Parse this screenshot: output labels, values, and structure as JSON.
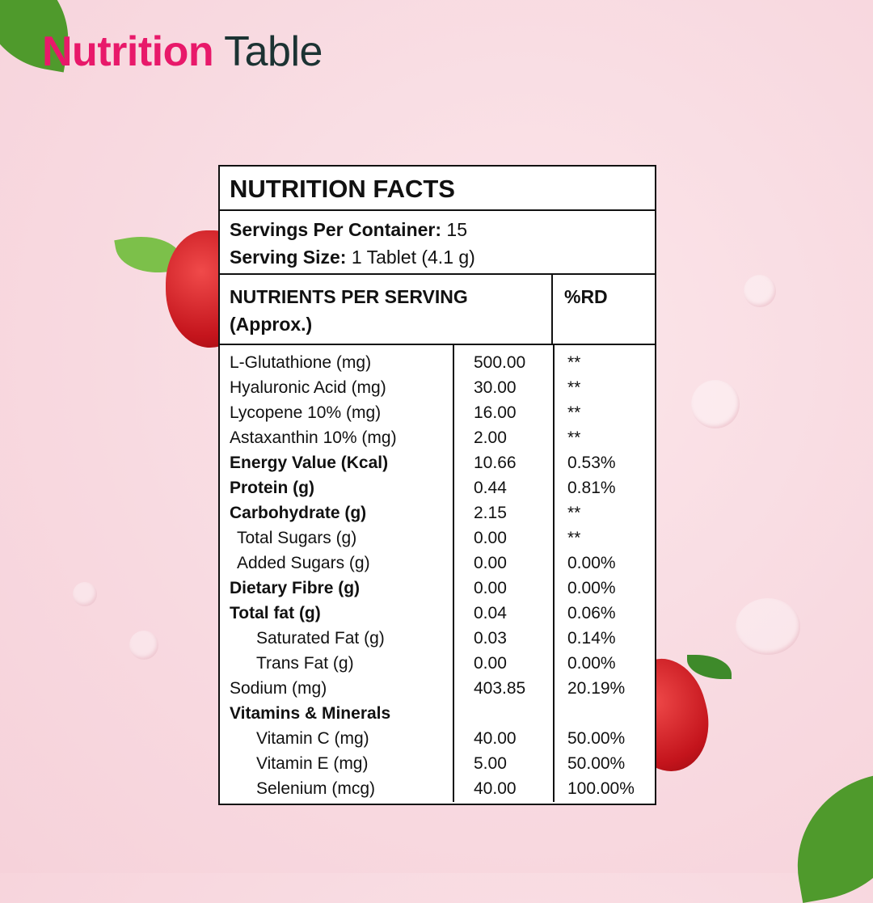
{
  "heading": {
    "part1": "Nutrition",
    "part2": "Table"
  },
  "facts_title": "NUTRITION FACTS",
  "servings": {
    "per_container_label": "Servings Per Container:",
    "per_container_value": "15",
    "size_label": "Serving Size:",
    "size_value": "1 Tablet (4.1 g)"
  },
  "header": {
    "nutrients": "NUTRIENTS PER SERVING",
    "approx": "(Approx.)",
    "rd": "%RD"
  },
  "rows": [
    {
      "name": "L-Glutathione (mg)",
      "value": "500.00",
      "rd": "**",
      "bold": false,
      "indent": 0
    },
    {
      "name": "Hyaluronic Acid (mg)",
      "value": "30.00",
      "rd": "**",
      "bold": false,
      "indent": 0
    },
    {
      "name": "Lycopene 10% (mg)",
      "value": "16.00",
      "rd": "**",
      "bold": false,
      "indent": 0
    },
    {
      "name": "Astaxanthin 10% (mg)",
      "value": "2.00",
      "rd": "**",
      "bold": false,
      "indent": 0
    },
    {
      "name": "Energy Value (Kcal)",
      "value": "10.66",
      "rd": "0.53%",
      "bold": true,
      "indent": 0
    },
    {
      "name": "Protein (g)",
      "value": "0.44",
      "rd": "0.81%",
      "bold": true,
      "indent": 0
    },
    {
      "name": "Carbohydrate (g)",
      "value": "2.15",
      "rd": "**",
      "bold": true,
      "indent": 0
    },
    {
      "name": "Total Sugars (g)",
      "value": "0.00",
      "rd": "**",
      "bold": false,
      "indent": 1
    },
    {
      "name": "Added Sugars (g)",
      "value": "0.00",
      "rd": "0.00%",
      "bold": false,
      "indent": 1
    },
    {
      "name": "Dietary Fibre (g)",
      "value": "0.00",
      "rd": "0.00%",
      "bold": true,
      "indent": 0
    },
    {
      "name": "Total fat (g)",
      "value": "0.04",
      "rd": "0.06%",
      "bold": true,
      "indent": 0
    },
    {
      "name": "Saturated Fat (g)",
      "value": "0.03",
      "rd": "0.14%",
      "bold": false,
      "indent": 2
    },
    {
      "name": "Trans Fat (g)",
      "value": "0.00",
      "rd": "0.00%",
      "bold": false,
      "indent": 2
    },
    {
      "name": "Sodium (mg)",
      "value": "403.85",
      "rd": "20.19%",
      "bold": false,
      "indent": 0
    },
    {
      "name": "Vitamins & Minerals",
      "value": "",
      "rd": "",
      "bold": true,
      "indent": 0
    },
    {
      "name": "Vitamin C (mg)",
      "value": "40.00",
      "rd": "50.00%",
      "bold": false,
      "indent": 2
    },
    {
      "name": "Vitamin E (mg)",
      "value": "5.00",
      "rd": "50.00%",
      "bold": false,
      "indent": 2
    },
    {
      "name": "Selenium (mcg)",
      "value": "40.00",
      "rd": "100.00%",
      "bold": false,
      "indent": 2
    }
  ],
  "colors": {
    "accent": "#e8196a",
    "heading_dark": "#1c3333",
    "background": "#f8d9e0"
  }
}
